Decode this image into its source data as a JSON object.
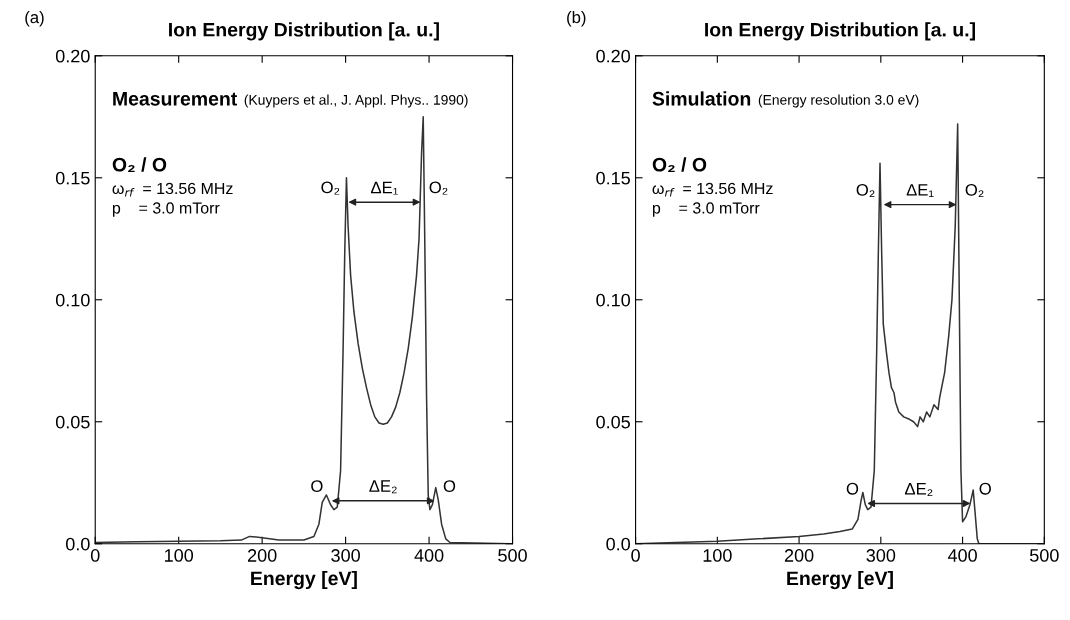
{
  "chart_data": [
    {
      "type": "line",
      "title": "Ion Energy Distribution [a. u.]",
      "xlabel": "Energy [eV]",
      "xlim": [
        0,
        500
      ],
      "xticks": [
        0,
        100,
        200,
        300,
        400,
        500
      ],
      "ylim": [
        0,
        0.2
      ],
      "yticks": [
        {
          "value": 0,
          "label": "0.0"
        },
        {
          "value": 0.05,
          "label": "0.05"
        },
        {
          "value": 0.1,
          "label": "0.10"
        },
        {
          "value": 0.15,
          "label": "0.15"
        },
        {
          "value": 0.2,
          "label": "0.20"
        }
      ],
      "grid": false,
      "legend": false,
      "series": [
        {
          "color": "#333333",
          "x": [
            0,
            50,
            100,
            150,
            175,
            185,
            200,
            220,
            250,
            262,
            268,
            272,
            277,
            282,
            286,
            290,
            294,
            297,
            299,
            301,
            303,
            306,
            310,
            315,
            320,
            325,
            330,
            335,
            340,
            345,
            350,
            355,
            360,
            365,
            370,
            375,
            380,
            385,
            388,
            391,
            393,
            395,
            397,
            399,
            401,
            404,
            408,
            411,
            415,
            420,
            425,
            500
          ],
          "values": [
            0.0005,
            0.0008,
            0.001,
            0.0012,
            0.0015,
            0.003,
            0.0025,
            0.0015,
            0.0015,
            0.003,
            0.008,
            0.017,
            0.02,
            0.016,
            0.014,
            0.015,
            0.03,
            0.08,
            0.12,
            0.15,
            0.13,
            0.11,
            0.095,
            0.082,
            0.072,
            0.064,
            0.057,
            0.052,
            0.0495,
            0.049,
            0.0495,
            0.052,
            0.056,
            0.062,
            0.07,
            0.08,
            0.093,
            0.11,
            0.125,
            0.16,
            0.175,
            0.12,
            0.06,
            0.02,
            0.014,
            0.016,
            0.023,
            0.018,
            0.008,
            0.002,
            0.0005,
            0
          ]
        }
      ],
      "annotations": [
        "(a)",
        "Measurement",
        "(Kuypers et al., J. Appl. Phys.. 1990)",
        "O₂ / O",
        "ω$_{rf}$  = 13.56 MHz",
        "p    = 3.0 mTorr",
        "ΔE₁",
        "ΔE₂",
        {
          "text": "O₂",
          "x": 300,
          "y": 0.14
        },
        {
          "text": "O₂",
          "x": 393,
          "y": 0.14
        },
        {
          "text": "O",
          "x": 280,
          "y": 0.0176
        },
        {
          "text": "O",
          "x": 410,
          "y": 0.0176
        }
      ]
    },
    {
      "type": "line",
      "title": "Ion Energy Distribution [a. u.]",
      "xlabel": "Energy [eV]",
      "xlim": [
        0,
        500
      ],
      "xticks": [
        0,
        100,
        200,
        300,
        400,
        500
      ],
      "ylim": [
        0,
        0.2
      ],
      "yticks": [
        {
          "value": 0,
          "label": "0.0"
        },
        {
          "value": 0.05,
          "label": "0.05"
        },
        {
          "value": 0.1,
          "label": "0.10"
        },
        {
          "value": 0.15,
          "label": "0.15"
        },
        {
          "value": 0.2,
          "label": "0.20"
        }
      ],
      "grid": false,
      "legend": false,
      "series": [
        {
          "color": "#333333",
          "x": [
            0,
            50,
            100,
            150,
            200,
            230,
            250,
            265,
            272,
            276,
            278,
            281,
            284,
            288,
            292,
            295,
            297,
            299,
            301,
            303,
            307,
            310,
            313,
            316,
            318,
            322,
            328,
            335,
            340,
            345,
            348,
            352,
            356,
            360,
            365,
            370,
            372,
            378,
            383,
            387,
            391,
            394,
            396,
            398,
            400,
            404,
            409,
            413,
            416,
            418,
            420,
            500
          ],
          "values": [
            0,
            0.0005,
            0.001,
            0.002,
            0.003,
            0.004,
            0.005,
            0.006,
            0.01,
            0.018,
            0.021,
            0.016,
            0.014,
            0.015,
            0.03,
            0.08,
            0.12,
            0.156,
            0.12,
            0.09,
            0.078,
            0.07,
            0.064,
            0.062,
            0.058,
            0.054,
            0.052,
            0.051,
            0.05,
            0.048,
            0.052,
            0.05,
            0.054,
            0.052,
            0.057,
            0.055,
            0.06,
            0.07,
            0.085,
            0.1,
            0.13,
            0.172,
            0.1,
            0.03,
            0.009,
            0.011,
            0.016,
            0.022,
            0.01,
            0.002,
            0,
            0
          ]
        }
      ],
      "annotations": [
        "(b)",
        "Simulation",
        "(Energy resolution 3.0 eV)",
        "O₂ / O",
        "ω$_{rf}$  = 13.56 MHz",
        "p    = 3.0 mTorr",
        "ΔE₁",
        "ΔE₂",
        {
          "text": "O₂",
          "x": 300,
          "y": 0.139
        },
        {
          "text": "O₂",
          "x": 396,
          "y": 0.139
        },
        {
          "text": "O",
          "x": 280,
          "y": 0.0165
        },
        {
          "text": "O",
          "x": 413,
          "y": 0.0165
        }
      ]
    }
  ]
}
